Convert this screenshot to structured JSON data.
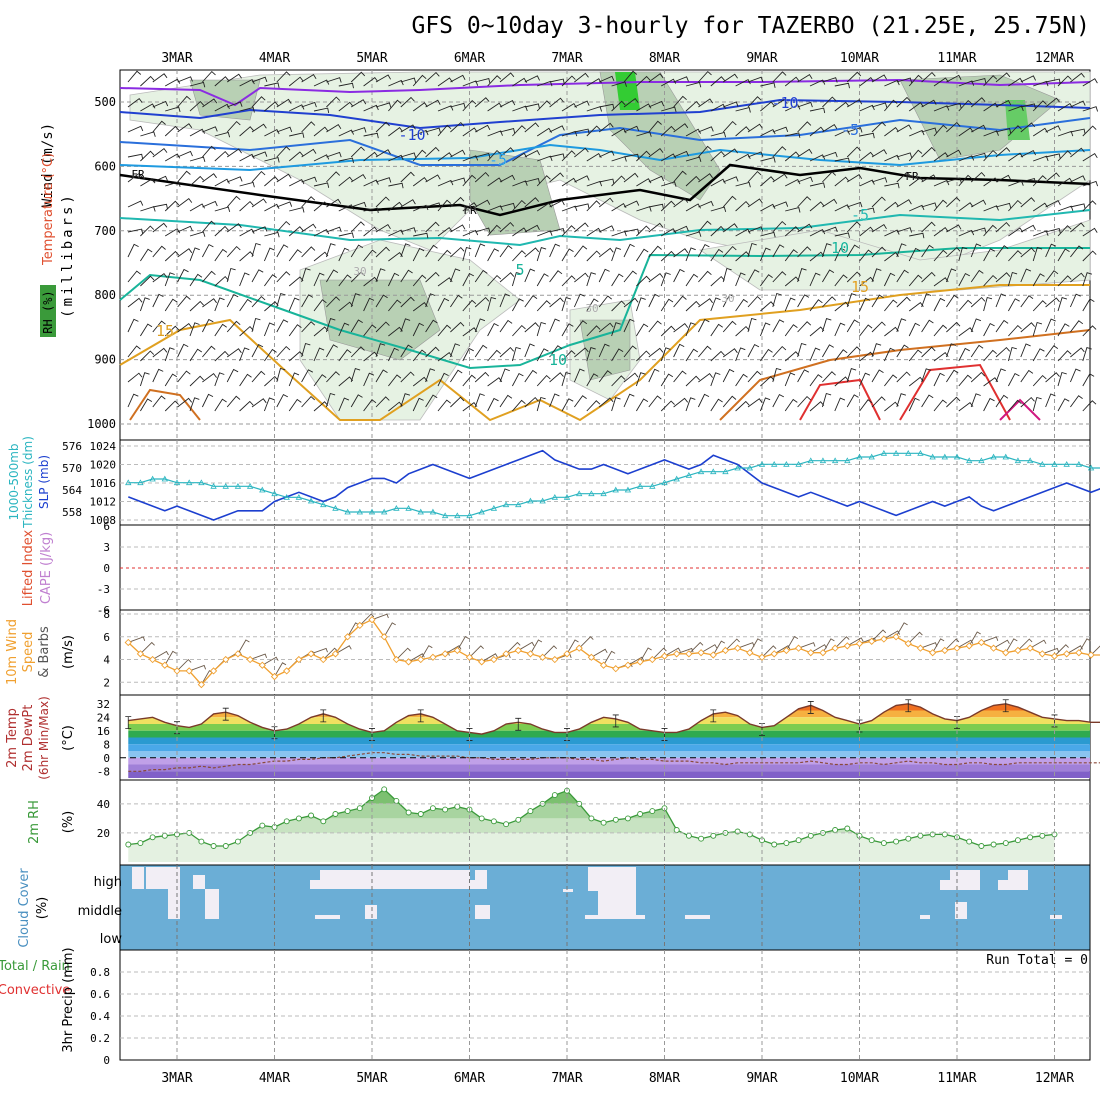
{
  "title": "GFS 0~10day 3-hourly for TAZERBO (21.25E, 25.75N)",
  "dates": [
    "3MAR",
    "4MAR",
    "5MAR",
    "6MAR",
    "7MAR",
    "8MAR",
    "9MAR",
    "10MAR",
    "11MAR",
    "12MAR"
  ],
  "panels": {
    "upper": {
      "labels": [
        "Wind (m/s)",
        "Temperature (°C)",
        "RH (%)",
        "(millibars)"
      ],
      "yticks": [
        500,
        600,
        700,
        800,
        900,
        1000
      ],
      "contour_labels": [
        "-10",
        "-10",
        "-5",
        "-5",
        "-5",
        "5",
        "10",
        "10",
        "15",
        "15",
        "30",
        "30",
        "30",
        "FR",
        "FR",
        "FR"
      ]
    },
    "slp": {
      "labels": [
        "1000-500mb",
        "Thickness (dm)",
        "SLP (mb)"
      ],
      "left_ticks": [
        558,
        564,
        570,
        576
      ],
      "right_ticks": [
        1008,
        1012,
        1016,
        1020,
        1024
      ]
    },
    "cape": {
      "labels": [
        "Lifted Index",
        "CAPE (J/kg)"
      ],
      "yticks": [
        "6",
        "3",
        "0",
        "-3",
        "-6"
      ]
    },
    "wind10m": {
      "labels": [
        "10m Wind",
        "Speed",
        "& Barbs",
        "(m/s)"
      ],
      "yticks": [
        2,
        4,
        6,
        8
      ]
    },
    "temp2m": {
      "labels": [
        "2m Temp",
        "2m DewPt",
        "(6hr Min/Max)",
        "(°C)"
      ],
      "yticks": [
        -8,
        0,
        8,
        16,
        24,
        32
      ]
    },
    "rh2m": {
      "labels": [
        "2m RH",
        "(%)"
      ],
      "yticks": [
        20,
        40
      ]
    },
    "cloud": {
      "labels": [
        "Cloud Cover",
        "(%)"
      ],
      "levels": [
        "high",
        "middle",
        "low"
      ]
    },
    "precip": {
      "labels": [
        "Total / Rain",
        "Convective",
        "3hr Precip (mm)"
      ],
      "yticks": [
        "0",
        "0.2",
        "0.4",
        "0.6",
        "0.8"
      ],
      "run_total": "Run Total = 0"
    }
  },
  "colors": {
    "slp": "#1c3fcf",
    "thickness": "#2bb5c0",
    "wind10m": "#f0a030",
    "rh": "#3a9a3a",
    "cloud_bg": "#6baed6",
    "cloud_gap": "#f2eef5",
    "freezing": "#000000"
  },
  "chart_data": [
    {
      "type": "line",
      "name_key": "slp",
      "x_unit": "day offset from 3MAR 00Z (3-hourly)",
      "ylabel": "SLP (mb)",
      "ylim": [
        1006,
        1024
      ],
      "values": [
        1013,
        1012,
        1011,
        1010,
        1011,
        1010,
        1009,
        1008,
        1009,
        1010,
        1010,
        1010,
        1012,
        1013,
        1014,
        1013,
        1012,
        1013,
        1015,
        1016,
        1017,
        1017,
        1016,
        1018,
        1019,
        1020,
        1019,
        1018,
        1017,
        1018,
        1019,
        1020,
        1021,
        1022,
        1023,
        1021,
        1020,
        1019,
        1019,
        1020,
        1019,
        1018,
        1019,
        1020,
        1021,
        1020,
        1019,
        1020,
        1022,
        1021,
        1020,
        1018,
        1016,
        1015,
        1014,
        1013,
        1014,
        1013,
        1012,
        1011,
        1012,
        1011,
        1010,
        1009,
        1010,
        1011,
        1012,
        1011,
        1012,
        1013,
        1011,
        1010,
        1011,
        1012,
        1013,
        1014,
        1015,
        1016,
        1015,
        1014,
        1015
      ]
    },
    {
      "type": "line",
      "name_key": "thickness",
      "ylabel": "1000-500mb Thickness (dm)",
      "ylim": [
        556,
        578
      ],
      "values": [
        566,
        566,
        567,
        567,
        566,
        566,
        566,
        565,
        565,
        565,
        565,
        564,
        563,
        562,
        562,
        561,
        560,
        559,
        558,
        558,
        558,
        558,
        559,
        559,
        558,
        558,
        557,
        557,
        557,
        558,
        559,
        560,
        560,
        561,
        561,
        562,
        562,
        563,
        563,
        563,
        564,
        564,
        565,
        565,
        566,
        567,
        568,
        569,
        569,
        569,
        570,
        570,
        571,
        571,
        571,
        571,
        572,
        572,
        572,
        572,
        573,
        573,
        574,
        574,
        574,
        574,
        573,
        573,
        573,
        572,
        572,
        573,
        573,
        572,
        572,
        571,
        571,
        571,
        571,
        570,
        570
      ]
    },
    {
      "type": "line",
      "name_key": "wind10m",
      "ylabel": "Speed (m/s)",
      "ylim": [
        1.5,
        8
      ],
      "values": [
        5.5,
        4.5,
        4,
        3.5,
        3,
        3,
        1.8,
        3,
        4,
        4.5,
        4,
        3.5,
        2.5,
        3,
        4,
        4.5,
        4,
        4.5,
        6,
        7,
        7.5,
        6,
        4,
        3.8,
        4,
        4.2,
        4.5,
        4.8,
        4.2,
        3.8,
        4,
        4.5,
        4.8,
        4.5,
        4.2,
        4,
        4.5,
        5,
        4.2,
        3.5,
        3.2,
        3.5,
        3.8,
        4,
        4.3,
        4.5,
        4.5,
        4.6,
        4.4,
        4.8,
        5,
        4.6,
        4.2,
        4.5,
        4.8,
        5,
        4.6,
        4.6,
        5,
        5.2,
        5.4,
        5.6,
        5.8,
        6,
        5.4,
        5,
        4.6,
        4.8,
        5,
        5.2,
        5.5,
        5,
        4.6,
        4.8,
        5,
        4.5,
        4.3,
        4.5,
        4.6,
        4.4,
        4.4
      ]
    },
    {
      "type": "area",
      "name_key": "temp2m",
      "ylabel": "2m Temp (°C)",
      "ylim": [
        -12,
        36
      ],
      "values": [
        22,
        23,
        24,
        21,
        19,
        18,
        20,
        26,
        27,
        25,
        21,
        18,
        16,
        17,
        20,
        24,
        26,
        24,
        20,
        17,
        15,
        16,
        21,
        25,
        26,
        24,
        20,
        16,
        15,
        14,
        16,
        20,
        21,
        20,
        17,
        15,
        15,
        17,
        21,
        24,
        23,
        21,
        17,
        16,
        15,
        15,
        17,
        22,
        26,
        27,
        25,
        20,
        18,
        19,
        24,
        29,
        31,
        28,
        24,
        22,
        20,
        22,
        27,
        31,
        32,
        30,
        26,
        23,
        22,
        24,
        28,
        31,
        32,
        30,
        27,
        24,
        23,
        22,
        22,
        21,
        21
      ]
    },
    {
      "type": "line",
      "name_key": "dewpt2m",
      "ylabel": "2m DewPt (°C)",
      "ylim": [
        -12,
        36
      ],
      "values": [
        -8,
        -8,
        -7,
        -7,
        -6,
        -6,
        -5,
        -6,
        -5,
        -4,
        -4,
        -3,
        -2,
        -2,
        -1,
        -1,
        0,
        0,
        1,
        2,
        3,
        3,
        2,
        2,
        1,
        1,
        1,
        1,
        0,
        0,
        -1,
        -1,
        -1,
        -1,
        0,
        0,
        0,
        -1,
        -1,
        -2,
        -1,
        0,
        -1,
        -1,
        -2,
        -2,
        -2,
        -3,
        -3,
        -4,
        -3,
        -3,
        -3,
        -3,
        -3,
        -3,
        -2,
        -3,
        -4,
        -4,
        -3,
        -3,
        -4,
        -3,
        -2,
        -3,
        -3,
        -4,
        -4,
        -3,
        -3,
        -4,
        -4,
        -3,
        -3,
        -3,
        -3,
        -3,
        -3,
        -3,
        -3
      ]
    },
    {
      "type": "area",
      "name_key": "rh2m",
      "ylabel": "2m RH (%)",
      "ylim": [
        0,
        55
      ],
      "values": [
        12,
        13,
        17,
        18,
        19,
        20,
        14,
        11,
        11,
        14,
        20,
        25,
        24,
        28,
        30,
        32,
        28,
        33,
        35,
        37,
        44,
        50,
        42,
        34,
        33,
        37,
        36,
        38,
        36,
        30,
        28,
        26,
        29,
        35,
        40,
        46,
        49,
        40,
        30,
        27,
        29,
        30,
        33,
        35,
        37,
        22,
        18,
        16,
        18,
        20,
        21,
        19,
        15,
        12,
        13,
        15,
        18,
        20,
        22,
        23,
        18,
        15,
        13,
        14,
        16,
        18,
        19,
        19,
        17,
        14,
        11,
        12,
        13,
        15,
        17,
        18,
        19
      ]
    },
    {
      "type": "bar",
      "name_key": "precip",
      "ylabel": "3hr Precip (mm)",
      "ylim": [
        0,
        1
      ],
      "values": []
    }
  ]
}
